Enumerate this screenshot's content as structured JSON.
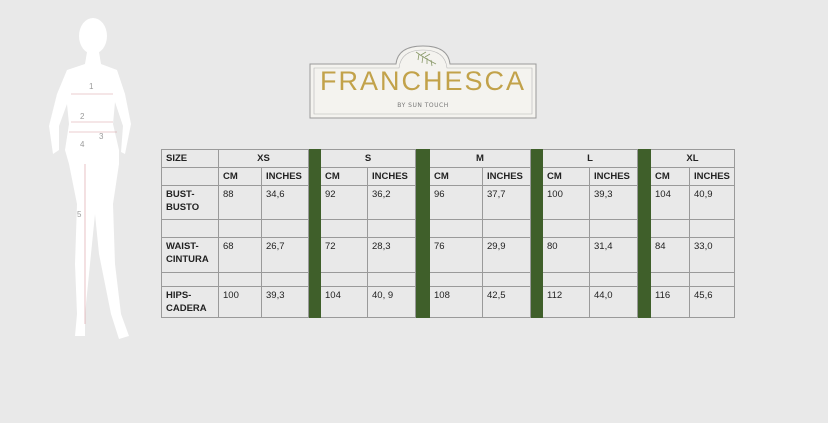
{
  "brand": {
    "name": "FRANCHESCA",
    "tagline": "BY SUN TOUCH",
    "accent_color": "#c2a24a"
  },
  "figure": {
    "labels": [
      "1",
      "2",
      "3",
      "4",
      "5"
    ]
  },
  "table": {
    "corner": "SIZE",
    "sizes": [
      "XS",
      "S",
      "M",
      "L",
      "XL"
    ],
    "units": [
      "CM",
      "INCHES"
    ],
    "separator_color": "#3f5f2a",
    "rows": [
      {
        "label1": "BUST-",
        "label2": "BUSTO",
        "values": [
          [
            "88",
            "34,6"
          ],
          [
            "92",
            "36,2"
          ],
          [
            "96",
            "37,7"
          ],
          [
            "100",
            "39,3"
          ],
          [
            "104",
            "40,9"
          ]
        ]
      },
      {
        "label1": "WAIST-",
        "label2": "CINTURA",
        "values": [
          [
            "68",
            "26,7"
          ],
          [
            "72",
            "28,3"
          ],
          [
            "76",
            "29,9"
          ],
          [
            "80",
            "31,4"
          ],
          [
            "84",
            "33,0"
          ]
        ]
      },
      {
        "label1": "HIPS-",
        "label2": "CADERA",
        "values": [
          [
            "100",
            "39,3"
          ],
          [
            "104",
            "40, 9"
          ],
          [
            "108",
            "42,5"
          ],
          [
            "112",
            "44,0"
          ],
          [
            "116",
            "45,6"
          ]
        ]
      }
    ]
  }
}
